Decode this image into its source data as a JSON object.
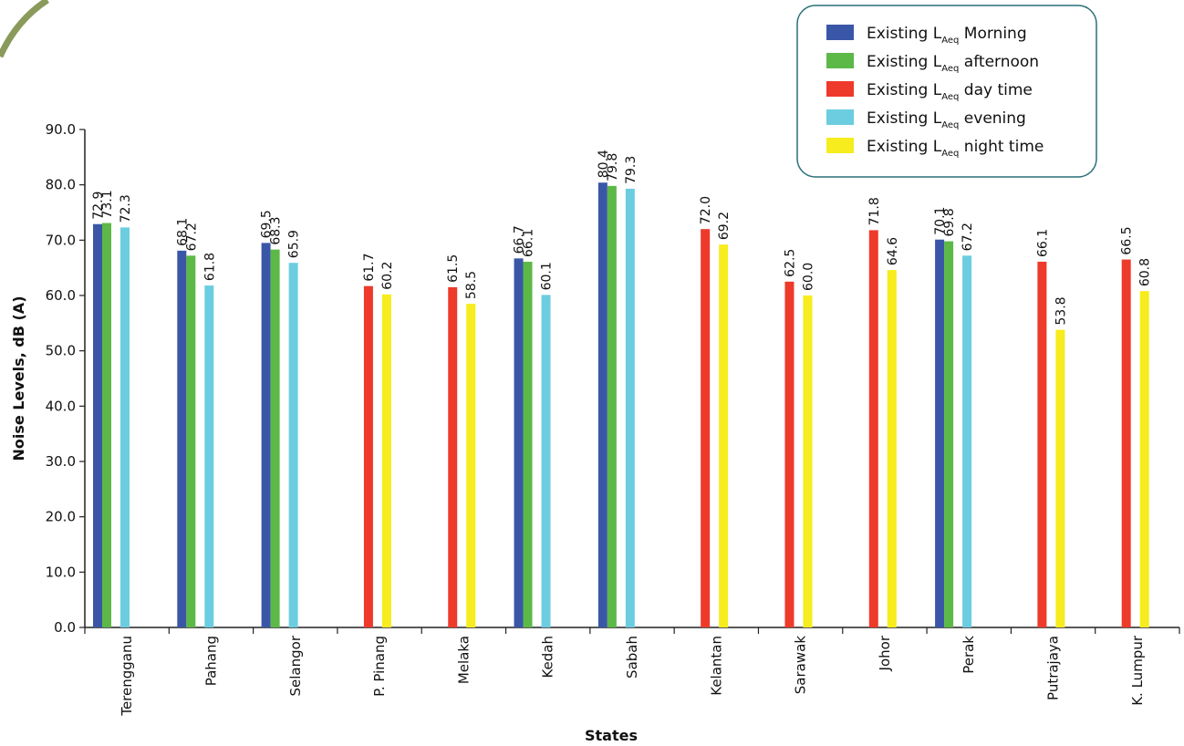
{
  "chart_data": {
    "type": "bar",
    "title": "",
    "xlabel": "States",
    "ylabel": "Noise Levels, dB (A)",
    "ylim": [
      0,
      90
    ],
    "yticks": [
      "0.0",
      "10.0",
      "20.0",
      "30.0",
      "40.0",
      "50.0",
      "60.0",
      "70.0",
      "80.0",
      "90.0"
    ],
    "grid": false,
    "legend_position": "top-right",
    "categories": [
      "Terengganu",
      "Pahang",
      "Selangor",
      "P. Pinang",
      "Melaka",
      "Kedah",
      "Sabah",
      "Kelantan",
      "Sarawak",
      "Johor",
      "Perak",
      "Putrajaya",
      "K. Lumpur"
    ],
    "series": [
      {
        "name": "Existing LAeq Morning",
        "prefix": "Existing L",
        "sub": "Aeq",
        "suffix": " Morning",
        "color": "#3a57a7",
        "values": [
          72.9,
          68.1,
          69.5,
          null,
          null,
          66.7,
          80.4,
          null,
          null,
          null,
          70.1,
          null,
          null
        ],
        "labels": [
          "72.9",
          "68.1",
          "69.5",
          null,
          null,
          "66.7",
          "80.4",
          null,
          null,
          null,
          "70.1",
          null,
          null
        ]
      },
      {
        "name": "Existing LAeq afternoon",
        "prefix": "Existing L",
        "sub": "Aeq",
        "suffix": " afternoon",
        "color": "#5cb947",
        "values": [
          73.1,
          67.2,
          68.3,
          null,
          null,
          66.1,
          79.8,
          null,
          null,
          null,
          69.8,
          null,
          null
        ],
        "labels": [
          "73.1",
          "67.2",
          "68.3",
          null,
          null,
          "66.1",
          "79.8",
          null,
          null,
          null,
          "69.8",
          null,
          null
        ]
      },
      {
        "name": "Existing LAeq day time",
        "prefix": "Existing L",
        "sub": "Aeq",
        "suffix": " day time",
        "color": "#ee3a2b",
        "values": [
          null,
          null,
          null,
          61.7,
          61.5,
          null,
          null,
          72.0,
          62.5,
          71.8,
          null,
          66.1,
          66.5
        ],
        "labels": [
          null,
          null,
          null,
          "61.7",
          "61.5",
          null,
          null,
          "72.0",
          "62.5",
          "71.8",
          null,
          "66.1",
          "66.5"
        ]
      },
      {
        "name": "Existing LAeq evening",
        "prefix": "Existing L",
        "sub": "Aeq",
        "suffix": " evening",
        "color": "#6ccde0",
        "values": [
          72.3,
          61.8,
          65.9,
          null,
          null,
          60.1,
          79.3,
          null,
          null,
          null,
          67.2,
          null,
          null
        ],
        "labels": [
          "72.3",
          "61.8",
          "65.9",
          null,
          null,
          "60.1",
          "79.3",
          null,
          null,
          null,
          "67.2",
          null,
          null
        ]
      },
      {
        "name": "Existing LAeq night time",
        "prefix": "Existing L",
        "sub": "Aeq",
        "suffix": " night time",
        "color": "#f7ec1e",
        "values": [
          null,
          null,
          null,
          60.2,
          58.5,
          null,
          null,
          69.2,
          60.0,
          64.6,
          null,
          53.8,
          60.8
        ],
        "labels": [
          null,
          null,
          null,
          "60.2",
          "58.5",
          null,
          null,
          "69.2",
          "60.0",
          "64.6",
          null,
          "53.8",
          "60.8"
        ]
      }
    ]
  }
}
